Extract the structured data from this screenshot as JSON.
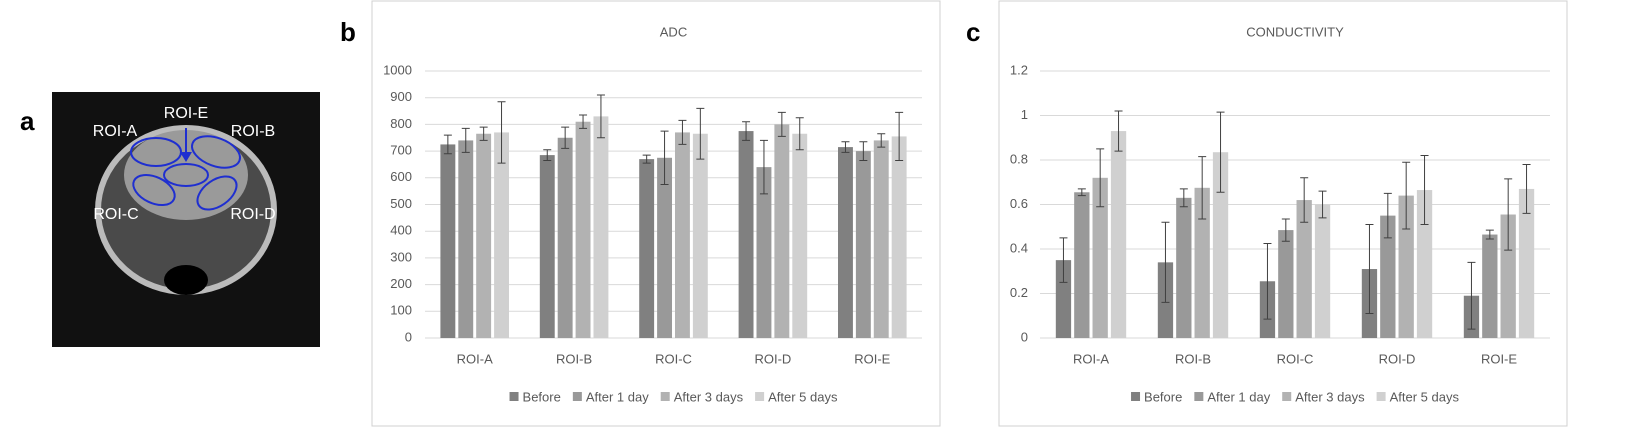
{
  "image": {
    "panel": "a",
    "labels": [
      "ROI-A",
      "ROI-E",
      "ROI-B",
      "ROI-C",
      "ROI-D"
    ]
  },
  "chart_data": [
    {
      "type": "bar",
      "panel": "b",
      "title": "ADC",
      "categories": [
        "ROI-A",
        "ROI-B",
        "ROI-C",
        "ROI-D",
        "ROI-E"
      ],
      "series": [
        {
          "name": "Before",
          "color": "#808080",
          "values": [
            725,
            685,
            670,
            775,
            715
          ],
          "errors": [
            35,
            20,
            15,
            35,
            20
          ]
        },
        {
          "name": "After 1 day",
          "color": "#999999",
          "values": [
            740,
            750,
            675,
            640,
            700
          ],
          "errors": [
            45,
            40,
            100,
            100,
            35
          ]
        },
        {
          "name": "After 3 days",
          "color": "#b2b2b2",
          "values": [
            765,
            810,
            770,
            800,
            740
          ],
          "errors": [
            25,
            25,
            45,
            45,
            25
          ]
        },
        {
          "name": "After 5 days",
          "color": "#d0d0d0",
          "values": [
            770,
            830,
            765,
            765,
            755
          ],
          "errors": [
            115,
            80,
            95,
            60,
            90
          ]
        }
      ],
      "ylim": [
        0,
        1000
      ],
      "yticks": [
        0,
        100,
        200,
        300,
        400,
        500,
        600,
        700,
        800,
        900,
        1000
      ],
      "grid": true,
      "legend": "bottom"
    },
    {
      "type": "bar",
      "panel": "c",
      "title": "CONDUCTIVITY",
      "categories": [
        "ROI-A",
        "ROI-B",
        "ROI-C",
        "ROI-D",
        "ROI-E"
      ],
      "series": [
        {
          "name": "Before",
          "color": "#808080",
          "values": [
            0.35,
            0.34,
            0.255,
            0.31,
            0.19
          ],
          "errors": [
            0.1,
            0.18,
            0.17,
            0.2,
            0.15
          ]
        },
        {
          "name": "After 1 day",
          "color": "#999999",
          "values": [
            0.655,
            0.63,
            0.485,
            0.55,
            0.465
          ],
          "errors": [
            0.015,
            0.04,
            0.05,
            0.1,
            0.02
          ]
        },
        {
          "name": "After 3 days",
          "color": "#b2b2b2",
          "values": [
            0.72,
            0.675,
            0.62,
            0.64,
            0.555
          ],
          "errors": [
            0.13,
            0.14,
            0.1,
            0.15,
            0.16
          ]
        },
        {
          "name": "After 5 days",
          "color": "#d0d0d0",
          "values": [
            0.93,
            0.835,
            0.6,
            0.665,
            0.67
          ],
          "errors": [
            0.09,
            0.18,
            0.06,
            0.155,
            0.11
          ]
        }
      ],
      "ylim": [
        0,
        1.2
      ],
      "yticks": [
        0,
        0.2,
        0.4,
        0.6,
        0.8,
        1,
        1.2
      ],
      "grid": true,
      "legend": "bottom"
    }
  ]
}
